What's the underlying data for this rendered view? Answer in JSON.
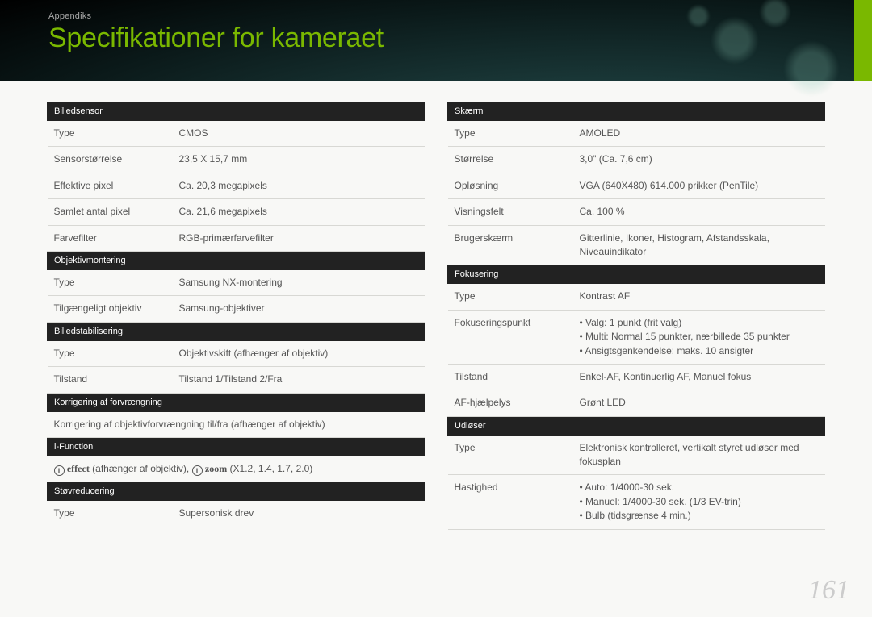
{
  "header": {
    "appendix_label": "Appendiks",
    "title": "Specifikationer for kameraet"
  },
  "page_number": "161",
  "columns": {
    "left": {
      "section_billedsensor": {
        "heading": "Billedsensor",
        "rows": [
          {
            "label": "Type",
            "value": "CMOS"
          },
          {
            "label": "Sensorstørrelse",
            "value": "23,5 X 15,7 mm"
          },
          {
            "label": "Effektive pixel",
            "value": "Ca. 20,3 megapixels"
          },
          {
            "label": "Samlet antal pixel",
            "value": "Ca. 21,6 megapixels"
          },
          {
            "label": "Farvefilter",
            "value": "RGB-primærfarvefilter"
          }
        ]
      },
      "section_objektivmontering": {
        "heading": "Objektivmontering",
        "rows": [
          {
            "label": "Type",
            "value": "Samsung NX-montering"
          },
          {
            "label": "Tilgængeligt objektiv",
            "value": "Samsung-objektiver"
          }
        ]
      },
      "section_billedstabilisering": {
        "heading": "Billedstabilisering",
        "rows": [
          {
            "label": "Type",
            "value": "Objektivskift (afhænger af objektiv)"
          },
          {
            "label": "Tilstand",
            "value": "Tilstand 1/Tilstand 2/Fra"
          }
        ]
      },
      "section_korrigering": {
        "heading": "Korrigering af forvrængning",
        "fullrow": "Korrigering af objektivforvrængning til/fra (afhænger af objektiv)"
      },
      "section_ifunction": {
        "heading": "i-Function",
        "ieffect_prefix": "effect",
        "ieffect_mid": " (afhænger af objektiv), ",
        "izoom_prefix": "zoom",
        "izoom_values": " (X1.2, 1.4, 1.7, 2.0)"
      },
      "section_stov": {
        "heading": "Støvreducering",
        "rows": [
          {
            "label": "Type",
            "value": "Supersonisk drev"
          }
        ]
      }
    },
    "right": {
      "section_skaerm": {
        "heading": "Skærm",
        "rows": [
          {
            "label": "Type",
            "value": "AMOLED"
          },
          {
            "label": "Størrelse",
            "value": "3,0\" (Ca. 7,6 cm)"
          },
          {
            "label": "Opløsning",
            "value": "VGA (640X480) 614.000 prikker (PenTile)"
          },
          {
            "label": "Visningsfelt",
            "value": "Ca. 100 %"
          },
          {
            "label": "Brugerskærm",
            "value": "Gitterlinie, Ikoner, Histogram, Afstandsskala, Niveauindikator"
          }
        ]
      },
      "section_fokusering": {
        "heading": "Fokusering",
        "rows_simple": [
          {
            "label": "Type",
            "value": "Kontrast AF"
          }
        ],
        "fokuspunkt_label": "Fokuseringspunkt",
        "fokuspunkt_bullets": [
          "Valg: 1 punkt (frit valg)",
          "Multi: Normal 15 punkter, nærbillede 35 punkter",
          "Ansigtsgenkendelse: maks. 10 ansigter"
        ],
        "rows_after": [
          {
            "label": "Tilstand",
            "value": "Enkel-AF, Kontinuerlig AF, Manuel fokus"
          },
          {
            "label": "AF-hjælpelys",
            "value": "Grønt LED"
          }
        ]
      },
      "section_udloser": {
        "heading": "Udløser",
        "rows_simple": [
          {
            "label": "Type",
            "value": "Elektronisk kontrolleret, vertikalt styret udløser med fokusplan"
          }
        ],
        "hastighed_label": "Hastighed",
        "hastighed_bullets": [
          "Auto: 1/4000-30 sek.",
          "Manuel: 1/4000-30 sek. (1/3 EV-trin)",
          "Bulb (tidsgrænse 4 min.)"
        ]
      }
    }
  },
  "style": {
    "section_bg": "#222222",
    "section_fg": "#ffffff",
    "accent_green": "#7ab800",
    "border_color": "#d8d8d4",
    "text_color": "#555555",
    "page_bg": "#f8f8f6"
  }
}
